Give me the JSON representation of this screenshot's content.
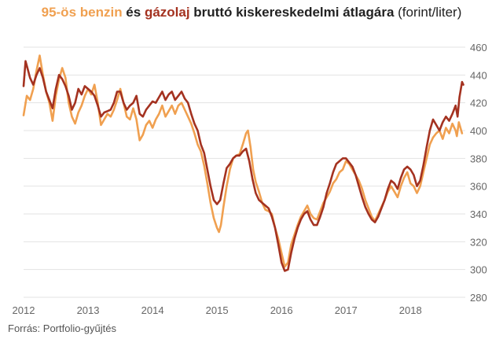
{
  "title": {
    "part1": "95-ös benzin",
    "part2": " és ",
    "part3": "gázolaj",
    "part4": " bruttó kiskereskedelmi átlagára",
    "part5": " (forint/liter)"
  },
  "source": "Forrás: Portfolio-gyűjtés",
  "chart_data": {
    "type": "line",
    "xlim": [
      2012,
      2018.85
    ],
    "ylim": [
      280,
      460
    ],
    "x_ticks": [
      2012,
      2013,
      2014,
      2015,
      2016,
      2017,
      2018
    ],
    "x_tick_labels": [
      "2012",
      "2013",
      "2014",
      "2015",
      "2016",
      "2017",
      "2018"
    ],
    "y_ticks": [
      280,
      300,
      320,
      340,
      360,
      380,
      400,
      420,
      440,
      460
    ],
    "y_tick_labels": [
      "280",
      "300",
      "320",
      "340",
      "360",
      "380",
      "400",
      "420",
      "440",
      "460"
    ],
    "grid": "horizontal",
    "legend": "in title",
    "series": [
      {
        "name": "95-ös benzin",
        "color": "#f0a050",
        "points": [
          [
            2012.0,
            411
          ],
          [
            2012.05,
            425
          ],
          [
            2012.1,
            422
          ],
          [
            2012.15,
            430
          ],
          [
            2012.2,
            443
          ],
          [
            2012.25,
            454
          ],
          [
            2012.3,
            440
          ],
          [
            2012.35,
            428
          ],
          [
            2012.4,
            420
          ],
          [
            2012.45,
            407
          ],
          [
            2012.5,
            425
          ],
          [
            2012.55,
            437
          ],
          [
            2012.6,
            445
          ],
          [
            2012.65,
            438
          ],
          [
            2012.7,
            420
          ],
          [
            2012.75,
            410
          ],
          [
            2012.8,
            405
          ],
          [
            2012.85,
            413
          ],
          [
            2012.9,
            418
          ],
          [
            2012.95,
            425
          ],
          [
            2013.0,
            430
          ],
          [
            2013.05,
            426
          ],
          [
            2013.1,
            433
          ],
          [
            2013.15,
            420
          ],
          [
            2013.2,
            404
          ],
          [
            2013.25,
            408
          ],
          [
            2013.3,
            412
          ],
          [
            2013.35,
            410
          ],
          [
            2013.4,
            415
          ],
          [
            2013.45,
            422
          ],
          [
            2013.5,
            430
          ],
          [
            2013.55,
            420
          ],
          [
            2013.6,
            410
          ],
          [
            2013.65,
            408
          ],
          [
            2013.7,
            416
          ],
          [
            2013.75,
            408
          ],
          [
            2013.8,
            393
          ],
          [
            2013.85,
            397
          ],
          [
            2013.9,
            404
          ],
          [
            2013.95,
            407
          ],
          [
            2014.0,
            402
          ],
          [
            2014.05,
            408
          ],
          [
            2014.1,
            412
          ],
          [
            2014.15,
            418
          ],
          [
            2014.2,
            410
          ],
          [
            2014.25,
            414
          ],
          [
            2014.3,
            418
          ],
          [
            2014.35,
            412
          ],
          [
            2014.4,
            418
          ],
          [
            2014.45,
            420
          ],
          [
            2014.5,
            415
          ],
          [
            2014.55,
            410
          ],
          [
            2014.6,
            405
          ],
          [
            2014.65,
            398
          ],
          [
            2014.7,
            390
          ],
          [
            2014.75,
            385
          ],
          [
            2014.8,
            375
          ],
          [
            2014.85,
            362
          ],
          [
            2014.9,
            348
          ],
          [
            2014.95,
            337
          ],
          [
            2015.0,
            330
          ],
          [
            2015.03,
            327
          ],
          [
            2015.06,
            332
          ],
          [
            2015.1,
            345
          ],
          [
            2015.15,
            360
          ],
          [
            2015.2,
            372
          ],
          [
            2015.25,
            380
          ],
          [
            2015.3,
            382
          ],
          [
            2015.35,
            383
          ],
          [
            2015.4,
            390
          ],
          [
            2015.45,
            398
          ],
          [
            2015.48,
            400
          ],
          [
            2015.52,
            388
          ],
          [
            2015.56,
            372
          ],
          [
            2015.6,
            363
          ],
          [
            2015.65,
            356
          ],
          [
            2015.7,
            348
          ],
          [
            2015.75,
            343
          ],
          [
            2015.8,
            342
          ],
          [
            2015.85,
            340
          ],
          [
            2015.9,
            330
          ],
          [
            2015.95,
            322
          ],
          [
            2016.0,
            312
          ],
          [
            2016.05,
            302
          ],
          [
            2016.1,
            305
          ],
          [
            2016.15,
            318
          ],
          [
            2016.2,
            325
          ],
          [
            2016.25,
            332
          ],
          [
            2016.3,
            338
          ],
          [
            2016.35,
            342
          ],
          [
            2016.4,
            346
          ],
          [
            2016.45,
            340
          ],
          [
            2016.5,
            337
          ],
          [
            2016.55,
            336
          ],
          [
            2016.6,
            342
          ],
          [
            2016.65,
            348
          ],
          [
            2016.7,
            352
          ],
          [
            2016.75,
            356
          ],
          [
            2016.8,
            362
          ],
          [
            2016.85,
            365
          ],
          [
            2016.9,
            370
          ],
          [
            2016.95,
            372
          ],
          [
            2017.0,
            378
          ],
          [
            2017.05,
            376
          ],
          [
            2017.1,
            372
          ],
          [
            2017.15,
            368
          ],
          [
            2017.2,
            364
          ],
          [
            2017.25,
            358
          ],
          [
            2017.3,
            350
          ],
          [
            2017.35,
            344
          ],
          [
            2017.4,
            338
          ],
          [
            2017.45,
            335
          ],
          [
            2017.5,
            340
          ],
          [
            2017.55,
            345
          ],
          [
            2017.6,
            350
          ],
          [
            2017.65,
            356
          ],
          [
            2017.7,
            360
          ],
          [
            2017.75,
            356
          ],
          [
            2017.8,
            352
          ],
          [
            2017.85,
            360
          ],
          [
            2017.9,
            366
          ],
          [
            2017.95,
            370
          ],
          [
            2018.0,
            362
          ],
          [
            2018.05,
            360
          ],
          [
            2018.1,
            355
          ],
          [
            2018.15,
            360
          ],
          [
            2018.2,
            370
          ],
          [
            2018.25,
            380
          ],
          [
            2018.3,
            390
          ],
          [
            2018.35,
            395
          ],
          [
            2018.4,
            398
          ],
          [
            2018.45,
            400
          ],
          [
            2018.5,
            394
          ],
          [
            2018.55,
            402
          ],
          [
            2018.6,
            398
          ],
          [
            2018.65,
            405
          ],
          [
            2018.7,
            400
          ],
          [
            2018.72,
            396
          ],
          [
            2018.75,
            406
          ],
          [
            2018.8,
            398
          ]
        ]
      },
      {
        "name": "gázolaj",
        "color": "#a43220",
        "points": [
          [
            2012.0,
            432
          ],
          [
            2012.03,
            450
          ],
          [
            2012.06,
            445
          ],
          [
            2012.1,
            438
          ],
          [
            2012.15,
            433
          ],
          [
            2012.2,
            440
          ],
          [
            2012.25,
            445
          ],
          [
            2012.3,
            438
          ],
          [
            2012.35,
            428
          ],
          [
            2012.4,
            422
          ],
          [
            2012.45,
            416
          ],
          [
            2012.5,
            430
          ],
          [
            2012.55,
            440
          ],
          [
            2012.6,
            437
          ],
          [
            2012.65,
            432
          ],
          [
            2012.7,
            425
          ],
          [
            2012.75,
            415
          ],
          [
            2012.8,
            420
          ],
          [
            2012.85,
            430
          ],
          [
            2012.9,
            426
          ],
          [
            2012.95,
            432
          ],
          [
            2013.0,
            430
          ],
          [
            2013.05,
            428
          ],
          [
            2013.1,
            425
          ],
          [
            2013.15,
            418
          ],
          [
            2013.2,
            410
          ],
          [
            2013.25,
            413
          ],
          [
            2013.3,
            414
          ],
          [
            2013.35,
            415
          ],
          [
            2013.4,
            420
          ],
          [
            2013.45,
            428
          ],
          [
            2013.5,
            428
          ],
          [
            2013.55,
            420
          ],
          [
            2013.6,
            415
          ],
          [
            2013.65,
            418
          ],
          [
            2013.7,
            420
          ],
          [
            2013.75,
            425
          ],
          [
            2013.8,
            412
          ],
          [
            2013.85,
            410
          ],
          [
            2013.9,
            415
          ],
          [
            2013.95,
            418
          ],
          [
            2014.0,
            421
          ],
          [
            2014.05,
            420
          ],
          [
            2014.1,
            424
          ],
          [
            2014.15,
            428
          ],
          [
            2014.2,
            422
          ],
          [
            2014.25,
            426
          ],
          [
            2014.3,
            428
          ],
          [
            2014.35,
            422
          ],
          [
            2014.4,
            425
          ],
          [
            2014.45,
            428
          ],
          [
            2014.5,
            423
          ],
          [
            2014.55,
            420
          ],
          [
            2014.6,
            412
          ],
          [
            2014.65,
            405
          ],
          [
            2014.7,
            400
          ],
          [
            2014.75,
            390
          ],
          [
            2014.8,
            384
          ],
          [
            2014.85,
            372
          ],
          [
            2014.9,
            360
          ],
          [
            2014.95,
            350
          ],
          [
            2015.0,
            347
          ],
          [
            2015.05,
            350
          ],
          [
            2015.1,
            362
          ],
          [
            2015.15,
            373
          ],
          [
            2015.2,
            376
          ],
          [
            2015.25,
            380
          ],
          [
            2015.3,
            382
          ],
          [
            2015.35,
            382
          ],
          [
            2015.4,
            385
          ],
          [
            2015.45,
            387
          ],
          [
            2015.5,
            378
          ],
          [
            2015.55,
            365
          ],
          [
            2015.6,
            355
          ],
          [
            2015.65,
            350
          ],
          [
            2015.7,
            348
          ],
          [
            2015.75,
            346
          ],
          [
            2015.8,
            344
          ],
          [
            2015.85,
            338
          ],
          [
            2015.9,
            330
          ],
          [
            2015.95,
            318
          ],
          [
            2016.0,
            305
          ],
          [
            2016.05,
            299
          ],
          [
            2016.1,
            300
          ],
          [
            2016.15,
            312
          ],
          [
            2016.2,
            322
          ],
          [
            2016.25,
            330
          ],
          [
            2016.3,
            336
          ],
          [
            2016.35,
            340
          ],
          [
            2016.4,
            342
          ],
          [
            2016.45,
            336
          ],
          [
            2016.5,
            332
          ],
          [
            2016.55,
            332
          ],
          [
            2016.6,
            338
          ],
          [
            2016.65,
            345
          ],
          [
            2016.7,
            355
          ],
          [
            2016.75,
            362
          ],
          [
            2016.8,
            370
          ],
          [
            2016.85,
            376
          ],
          [
            2016.9,
            378
          ],
          [
            2016.95,
            380
          ],
          [
            2017.0,
            380
          ],
          [
            2017.05,
            377
          ],
          [
            2017.1,
            374
          ],
          [
            2017.15,
            368
          ],
          [
            2017.2,
            360
          ],
          [
            2017.25,
            352
          ],
          [
            2017.3,
            345
          ],
          [
            2017.35,
            340
          ],
          [
            2017.4,
            336
          ],
          [
            2017.45,
            334
          ],
          [
            2017.5,
            338
          ],
          [
            2017.55,
            344
          ],
          [
            2017.6,
            350
          ],
          [
            2017.65,
            358
          ],
          [
            2017.7,
            364
          ],
          [
            2017.75,
            362
          ],
          [
            2017.8,
            358
          ],
          [
            2017.85,
            366
          ],
          [
            2017.9,
            372
          ],
          [
            2017.95,
            374
          ],
          [
            2018.0,
            372
          ],
          [
            2018.05,
            368
          ],
          [
            2018.1,
            360
          ],
          [
            2018.15,
            364
          ],
          [
            2018.2,
            375
          ],
          [
            2018.25,
            388
          ],
          [
            2018.3,
            400
          ],
          [
            2018.35,
            408
          ],
          [
            2018.4,
            404
          ],
          [
            2018.45,
            400
          ],
          [
            2018.5,
            406
          ],
          [
            2018.55,
            410
          ],
          [
            2018.6,
            407
          ],
          [
            2018.65,
            412
          ],
          [
            2018.7,
            418
          ],
          [
            2018.73,
            410
          ],
          [
            2018.76,
            424
          ],
          [
            2018.8,
            435
          ],
          [
            2018.82,
            433
          ]
        ]
      }
    ]
  }
}
